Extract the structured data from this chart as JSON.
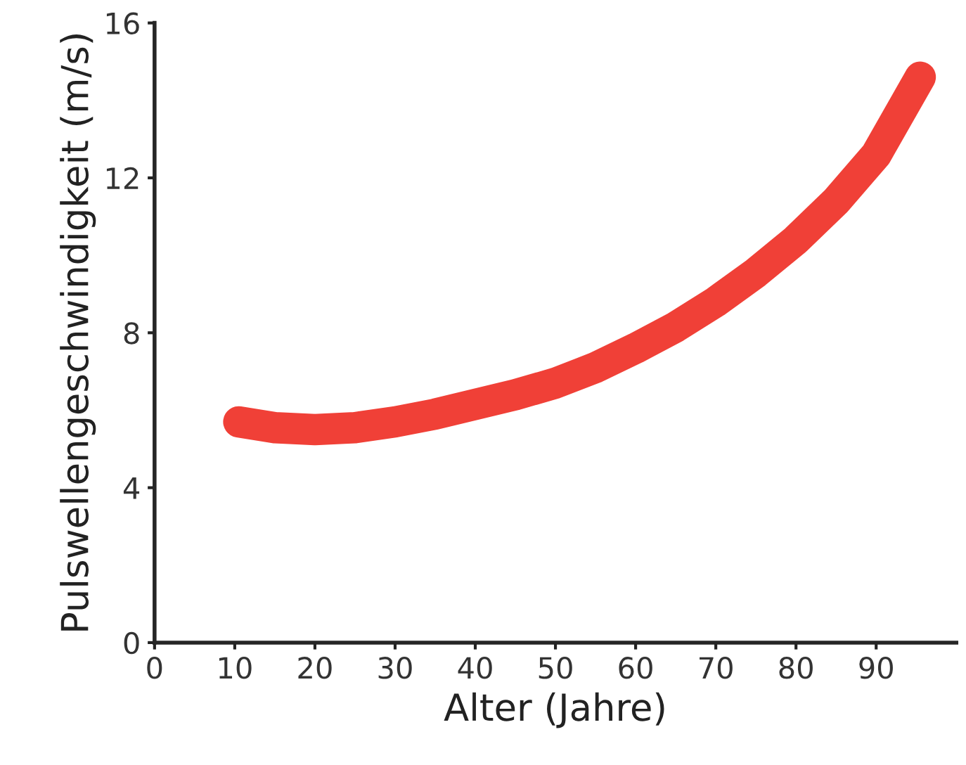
{
  "chart_data": {
    "type": "line",
    "xlabel": "Alter (Jahre)",
    "ylabel": "Pulswellengeschwindigkeit (m/s)",
    "x": [
      10.5,
      15,
      20,
      25,
      30,
      35,
      40,
      45,
      50,
      55,
      60,
      65,
      70,
      75,
      80,
      85,
      90,
      95.5
    ],
    "series": [
      {
        "color": "#f04037",
        "values": [
          5.7,
          5.55,
          5.5,
          5.55,
          5.7,
          5.9,
          6.15,
          6.4,
          6.7,
          7.1,
          7.6,
          8.15,
          8.8,
          9.55,
          10.4,
          11.4,
          12.6,
          14.6
        ]
      }
    ],
    "xlim": [
      0,
      100
    ],
    "ylim": [
      0,
      16
    ],
    "xticks": [
      0,
      10,
      20,
      30,
      40,
      50,
      60,
      70,
      80,
      90
    ],
    "yticks": [
      0,
      4,
      8,
      12,
      16
    ],
    "grid": false,
    "legend": false,
    "marker": "none",
    "line_style": "solid"
  }
}
